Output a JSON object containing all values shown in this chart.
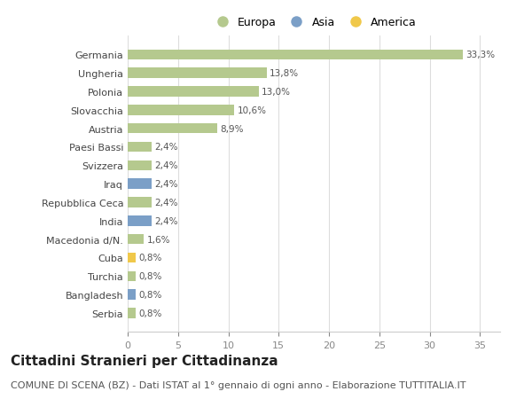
{
  "categories": [
    "Germania",
    "Ungheria",
    "Polonia",
    "Slovacchia",
    "Austria",
    "Paesi Bassi",
    "Svizzera",
    "Iraq",
    "Repubblica Ceca",
    "India",
    "Macedonia d/N.",
    "Cuba",
    "Turchia",
    "Bangladesh",
    "Serbia"
  ],
  "values": [
    33.3,
    13.8,
    13.0,
    10.6,
    8.9,
    2.4,
    2.4,
    2.4,
    2.4,
    2.4,
    1.6,
    0.8,
    0.8,
    0.8,
    0.8
  ],
  "labels": [
    "33,3%",
    "13,8%",
    "13,0%",
    "10,6%",
    "8,9%",
    "2,4%",
    "2,4%",
    "2,4%",
    "2,4%",
    "2,4%",
    "1,6%",
    "0,8%",
    "0,8%",
    "0,8%",
    "0,8%"
  ],
  "colors": [
    "#b5c98e",
    "#b5c98e",
    "#b5c98e",
    "#b5c98e",
    "#b5c98e",
    "#b5c98e",
    "#b5c98e",
    "#7b9fc7",
    "#b5c98e",
    "#7b9fc7",
    "#b5c98e",
    "#f0c84a",
    "#b5c98e",
    "#7b9fc7",
    "#b5c98e"
  ],
  "legend_labels": [
    "Europa",
    "Asia",
    "America"
  ],
  "legend_colors": [
    "#b5c98e",
    "#7b9fc7",
    "#f0c84a"
  ],
  "title": "Cittadini Stranieri per Cittadinanza",
  "subtitle": "COMUNE DI SCENA (BZ) - Dati ISTAT al 1° gennaio di ogni anno - Elaborazione TUTTITALIA.IT",
  "xlim": [
    0,
    37
  ],
  "background_color": "#ffffff",
  "grid_color": "#dddddd",
  "title_fontsize": 11,
  "subtitle_fontsize": 8,
  "bar_height": 0.55
}
